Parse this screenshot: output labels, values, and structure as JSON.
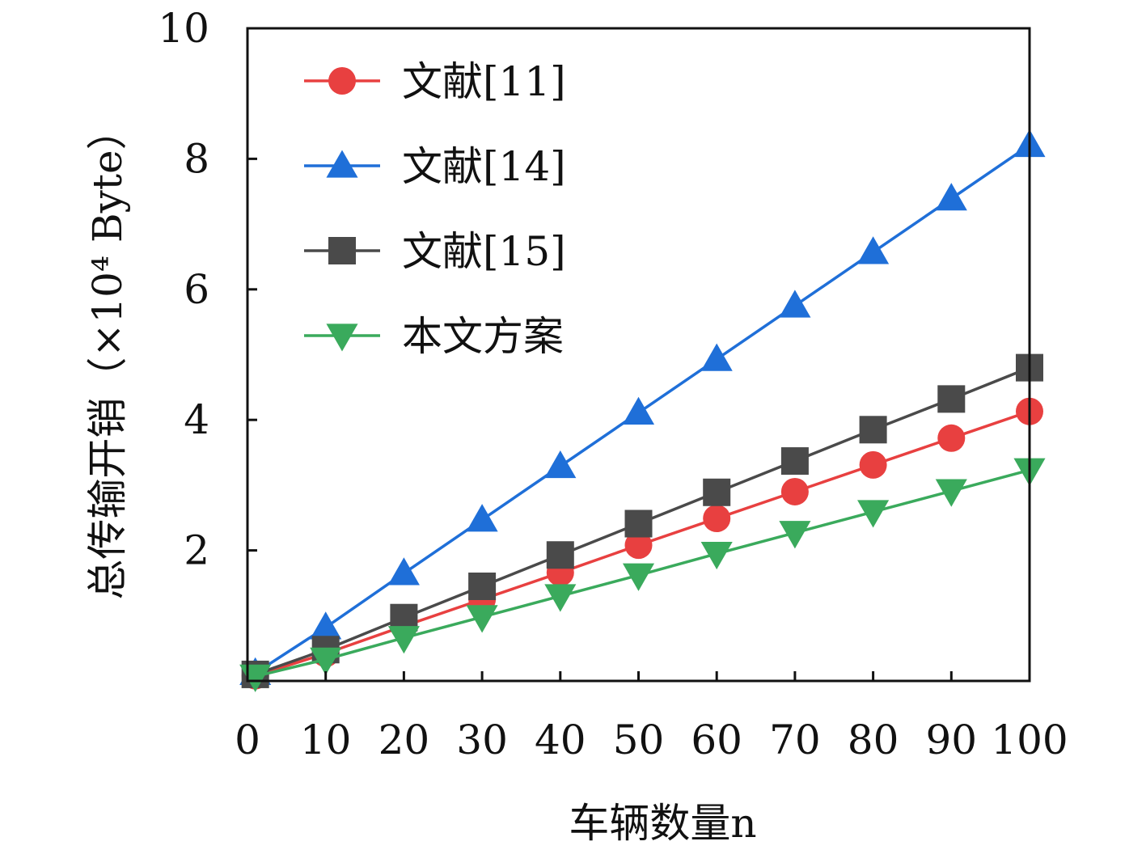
{
  "chart_data": {
    "type": "line",
    "xlabel": "车辆数量n",
    "ylabel": "总传输开销（×10⁴ Byte）",
    "x": [
      1,
      10,
      20,
      30,
      40,
      50,
      60,
      70,
      80,
      90,
      100
    ],
    "xlim": [
      0,
      100
    ],
    "ylim": [
      0,
      10
    ],
    "x_ticks": [
      "0",
      "10",
      "20",
      "30",
      "40",
      "50",
      "60",
      "70",
      "80",
      "90",
      "100"
    ],
    "y_ticks": [
      "2",
      "4",
      "6",
      "8",
      "10"
    ],
    "y_tick_values": [
      2,
      4,
      6,
      8,
      10
    ],
    "grid": false,
    "legend_position": "top-left",
    "series": [
      {
        "name": "文献[11]",
        "color": "#e84040",
        "marker": "circle",
        "values": [
          0.08,
          0.42,
          0.84,
          1.25,
          1.66,
          2.08,
          2.49,
          2.9,
          3.31,
          3.72,
          4.13
        ]
      },
      {
        "name": "文献[14]",
        "color": "#1f6fd8",
        "marker": "triangle-up",
        "values": [
          0.12,
          0.82,
          1.65,
          2.47,
          3.29,
          4.11,
          4.93,
          5.75,
          6.57,
          7.39,
          8.21
        ]
      },
      {
        "name": "文献[15]",
        "color": "#4a4a4a",
        "marker": "square",
        "values": [
          0.1,
          0.48,
          0.97,
          1.45,
          1.93,
          2.41,
          2.89,
          3.37,
          3.85,
          4.32,
          4.8
        ]
      },
      {
        "name": "本文方案",
        "color": "#3aaa5c",
        "marker": "triangle-down",
        "values": [
          0.07,
          0.33,
          0.66,
          0.98,
          1.3,
          1.62,
          1.95,
          2.27,
          2.59,
          2.91,
          3.23
        ]
      }
    ]
  }
}
